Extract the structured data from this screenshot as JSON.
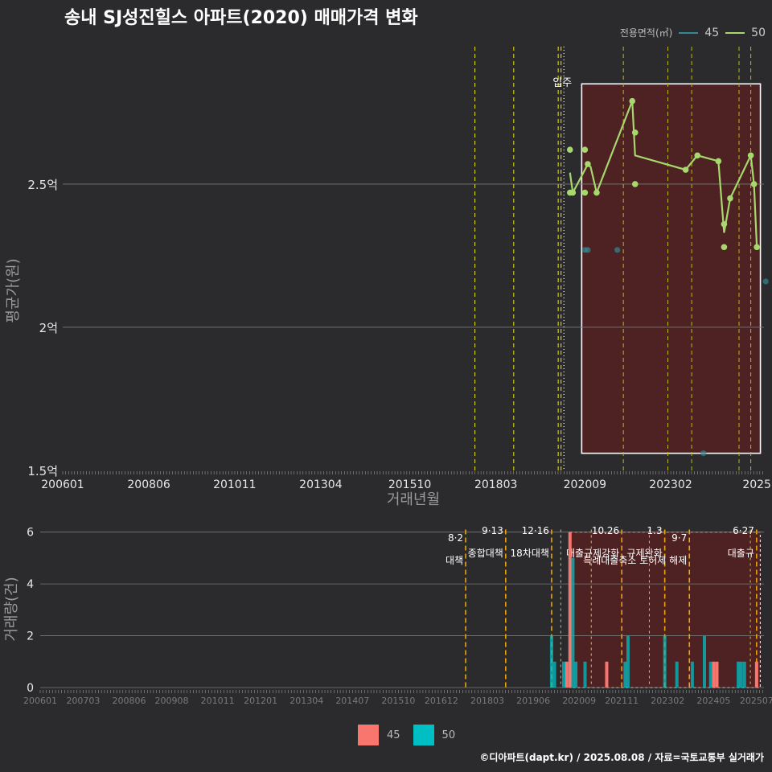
{
  "title": "송내 SJ성진힐스 아파트(2020) 매매가격 변화",
  "footer": "©디아파트(dapt.kr) / 2025.08.08 / 자료=국토교통부 실거래가",
  "legend_top": {
    "title": "전용면적(㎡)",
    "items": [
      {
        "label": "45",
        "color": "#2f8a91"
      },
      {
        "label": "50",
        "color": "#a6d86e"
      }
    ]
  },
  "legend_bottom": {
    "items": [
      {
        "label": "45",
        "color": "#f8766d"
      },
      {
        "label": "50",
        "color": "#00bfc4"
      }
    ]
  },
  "chart_data": [
    {
      "type": "line",
      "title": "송내 SJ성진힐스 아파트(2020) 매매가격 변화",
      "xlabel": "거래년월",
      "ylabel": "평균가(원)",
      "xlim": [
        2006.0,
        2025.7
      ],
      "ylim": [
        1.5,
        2.98
      ],
      "ytick_labels": [
        {
          "v": 1.5,
          "label": "1.5억"
        },
        {
          "v": 2.0,
          "label": "2억"
        },
        {
          "v": 2.5,
          "label": "2.5억"
        }
      ],
      "xtick_labels": [
        "200601",
        "200806",
        "201011",
        "201304",
        "201510",
        "201803",
        "202009",
        "202302",
        "2025"
      ],
      "xtick_values": [
        2006.0,
        2008.42,
        2010.83,
        2013.25,
        2015.75,
        2018.17,
        2020.67,
        2023.08,
        2025.5
      ],
      "event_lines": [
        2017.58,
        2018.67,
        2019.92,
        2020.0
      ],
      "event_lines_later": [
        2021.75,
        2023.0,
        2023.67,
        2025.0,
        2025.33
      ],
      "movein_label": "입주",
      "highlight_range": [
        2020.58,
        2025.6
      ],
      "series": [
        {
          "name": "45",
          "points": [
            {
              "x": 2020.67,
              "y": 2.27
            },
            {
              "x": 2020.75,
              "y": 2.27
            },
            {
              "x": 2021.58,
              "y": 2.27
            },
            {
              "x": 2024.0,
              "y": 1.56
            },
            {
              "x": 2025.75,
              "y": 2.16
            }
          ]
        },
        {
          "name": "50",
          "line": [
            {
              "x": 2020.25,
              "y": 2.54
            },
            {
              "x": 2020.33,
              "y": 2.47
            },
            {
              "x": 2020.67,
              "y": 2.55
            },
            {
              "x": 2020.75,
              "y": 2.57
            },
            {
              "x": 2020.83,
              "y": 2.56
            },
            {
              "x": 2021.0,
              "y": 2.47
            },
            {
              "x": 2022.0,
              "y": 2.79
            },
            {
              "x": 2022.08,
              "y": 2.6
            },
            {
              "x": 2023.5,
              "y": 2.55
            },
            {
              "x": 2023.83,
              "y": 2.6
            },
            {
              "x": 2024.42,
              "y": 2.58
            },
            {
              "x": 2024.58,
              "y": 2.33
            },
            {
              "x": 2024.75,
              "y": 2.45
            },
            {
              "x": 2025.33,
              "y": 2.6
            },
            {
              "x": 2025.42,
              "y": 2.5
            },
            {
              "x": 2025.5,
              "y": 2.28
            }
          ],
          "points": [
            {
              "x": 2020.25,
              "y": 2.62
            },
            {
              "x": 2020.25,
              "y": 2.47
            },
            {
              "x": 2020.33,
              "y": 2.47
            },
            {
              "x": 2020.67,
              "y": 2.47
            },
            {
              "x": 2020.67,
              "y": 2.62
            },
            {
              "x": 2020.75,
              "y": 2.57
            },
            {
              "x": 2021.0,
              "y": 2.47
            },
            {
              "x": 2022.0,
              "y": 2.79
            },
            {
              "x": 2022.08,
              "y": 2.68
            },
            {
              "x": 2022.08,
              "y": 2.5
            },
            {
              "x": 2023.5,
              "y": 2.55
            },
            {
              "x": 2023.83,
              "y": 2.6
            },
            {
              "x": 2024.42,
              "y": 2.58
            },
            {
              "x": 2024.58,
              "y": 2.28
            },
            {
              "x": 2024.58,
              "y": 2.36
            },
            {
              "x": 2024.75,
              "y": 2.45
            },
            {
              "x": 2025.33,
              "y": 2.6
            },
            {
              "x": 2025.42,
              "y": 2.5
            },
            {
              "x": 2025.5,
              "y": 2.28
            }
          ]
        }
      ]
    },
    {
      "type": "bar",
      "ylabel": "거래량(건)",
      "xlim": [
        2006.0,
        2025.7
      ],
      "ylim": [
        0,
        6.3
      ],
      "ytick_labels": [
        {
          "v": 0,
          "label": "0"
        },
        {
          "v": 2,
          "label": "2"
        },
        {
          "v": 4,
          "label": "4"
        },
        {
          "v": 6,
          "label": "6"
        }
      ],
      "xtick_labels": [
        "200601",
        "200703",
        "200806",
        "200908",
        "201011",
        "201201",
        "201304",
        "201407",
        "201510",
        "201612",
        "201803",
        "201906",
        "202009",
        "202111",
        "202302",
        "202405",
        "202507"
      ],
      "xtick_values": [
        2006.0,
        2007.17,
        2008.42,
        2009.58,
        2010.83,
        2012.0,
        2013.25,
        2014.5,
        2015.75,
        2016.92,
        2018.17,
        2019.42,
        2020.67,
        2021.83,
        2023.08,
        2024.33,
        2025.5
      ],
      "highlight_range": [
        2020.42,
        2025.6
      ],
      "policy_events": [
        {
          "x": 2017.58,
          "date": "8·2",
          "name": "대책",
          "level": 1
        },
        {
          "x": 2018.67,
          "date": "9·13",
          "name": "종합대책",
          "level": 0
        },
        {
          "x": 2019.92,
          "date": "12·16",
          "name": "18차대책",
          "level": 0
        },
        {
          "x": 2021.83,
          "date": "10.26",
          "name": "대출규제강화",
          "level": 0
        },
        {
          "x": 2023.0,
          "date": "1.3",
          "name": "규제완화",
          "level": 0
        },
        {
          "x": 2023.67,
          "date": "9·7",
          "name": "특례대출축소 토허제 해제",
          "level": 1
        },
        {
          "x": 2025.5,
          "date": "6·27",
          "name": "대출규",
          "level": 0
        }
      ],
      "minor_lines": [
        2020.17,
        2021.0,
        2022.58,
        2025.33
      ],
      "series": [
        {
          "name": "45",
          "bars": [
            {
              "x": 2020.33,
              "v": 1
            },
            {
              "x": 2020.42,
              "v": 6
            },
            {
              "x": 2021.42,
              "v": 1
            },
            {
              "x": 2024.33,
              "v": 1
            },
            {
              "x": 2024.42,
              "v": 1
            },
            {
              "x": 2025.5,
              "v": 1
            }
          ]
        },
        {
          "name": "50",
          "bars": [
            {
              "x": 2019.92,
              "v": 2
            },
            {
              "x": 2020.0,
              "v": 1
            },
            {
              "x": 2020.25,
              "v": 1
            },
            {
              "x": 2020.5,
              "v": 5
            },
            {
              "x": 2020.58,
              "v": 1
            },
            {
              "x": 2020.83,
              "v": 1
            },
            {
              "x": 2021.92,
              "v": 1
            },
            {
              "x": 2022.0,
              "v": 2
            },
            {
              "x": 2023.0,
              "v": 2
            },
            {
              "x": 2023.33,
              "v": 1
            },
            {
              "x": 2023.75,
              "v": 1
            },
            {
              "x": 2024.08,
              "v": 2
            },
            {
              "x": 2024.25,
              "v": 1
            },
            {
              "x": 2025.0,
              "v": 1
            },
            {
              "x": 2025.08,
              "v": 1
            },
            {
              "x": 2025.17,
              "v": 1
            }
          ]
        }
      ]
    }
  ]
}
